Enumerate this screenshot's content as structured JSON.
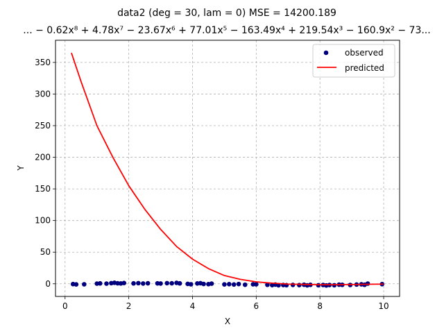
{
  "chart_data": {
    "type": "scatter",
    "title_line1": "data2  (deg = 30, lam = 0) MSE = 14200.189",
    "title_line2": "... − 0.62x⁸ + 4.78x⁷ − 23.67x⁶ + 77.01x⁵ − 163.49x⁴ + 219.54x³ − 160.9x² − 73...",
    "xlabel": "X",
    "ylabel": "Y",
    "xlim": [
      -0.3,
      10.5
    ],
    "ylim": [
      -20,
      385
    ],
    "xticks": [
      0,
      2,
      4,
      6,
      8,
      10
    ],
    "yticks": [
      0,
      50,
      100,
      150,
      200,
      250,
      300,
      350
    ],
    "grid": true,
    "legend_position": "top-right",
    "legend": [
      "observed",
      "predicted"
    ],
    "colors": {
      "observed": "#00007f",
      "predicted": "#ff0000",
      "grid": "#b0b0b0"
    },
    "series": [
      {
        "name": "observed",
        "kind": "scatter",
        "x": [
          0.25,
          0.35,
          0.6,
          1.0,
          1.1,
          1.3,
          1.45,
          1.55,
          1.65,
          1.75,
          1.85,
          2.15,
          2.3,
          2.45,
          2.6,
          2.9,
          3.0,
          3.2,
          3.35,
          3.5,
          3.6,
          3.85,
          3.95,
          4.15,
          4.25,
          4.35,
          4.5,
          4.6,
          5.0,
          5.15,
          5.3,
          5.45,
          5.65,
          5.9,
          6.0,
          6.35,
          6.5,
          6.6,
          6.7,
          6.85,
          6.95,
          7.15,
          7.35,
          7.5,
          7.6,
          7.7,
          7.95,
          8.1,
          8.2,
          8.3,
          8.45,
          8.6,
          8.7,
          8.95,
          9.15,
          9.3,
          9.4,
          9.5,
          9.95
        ],
        "y": [
          -0.5,
          -1.0,
          -0.8,
          0.3,
          0.6,
          0.2,
          1.0,
          1.6,
          0.8,
          0.5,
          1.2,
          0.6,
          1.0,
          0.4,
          0.8,
          0.7,
          0.4,
          1.0,
          0.8,
          1.5,
          0.6,
          -0.2,
          -0.8,
          0.5,
          0.9,
          -0.3,
          -0.6,
          0.2,
          -1.0,
          -0.6,
          -1.1,
          -0.4,
          -1.5,
          -0.8,
          -0.9,
          -1.6,
          -2.1,
          -1.3,
          -2.4,
          -2.0,
          -2.2,
          -1.8,
          -2.1,
          -1.5,
          -2.5,
          -1.7,
          -2.3,
          -1.9,
          -2.6,
          -2.0,
          -2.3,
          -1.4,
          -1.7,
          -1.9,
          -1.2,
          -0.9,
          -1.6,
          0.3,
          -0.6
        ]
      },
      {
        "name": "predicted",
        "kind": "line",
        "x": [
          0.2,
          0.5,
          1.0,
          1.5,
          2.0,
          2.5,
          3.0,
          3.5,
          4.0,
          4.5,
          5.0,
          5.5,
          6.0,
          6.5,
          7.0,
          7.5,
          8.0,
          8.5,
          9.0,
          9.5,
          10.0
        ],
        "y": [
          365,
          320,
          250,
          200,
          155,
          118,
          86,
          59,
          39,
          24,
          13,
          7,
          3,
          1,
          -0.5,
          -1,
          -1.5,
          -1.5,
          -1.2,
          -0.8,
          -0.5
        ]
      }
    ]
  }
}
